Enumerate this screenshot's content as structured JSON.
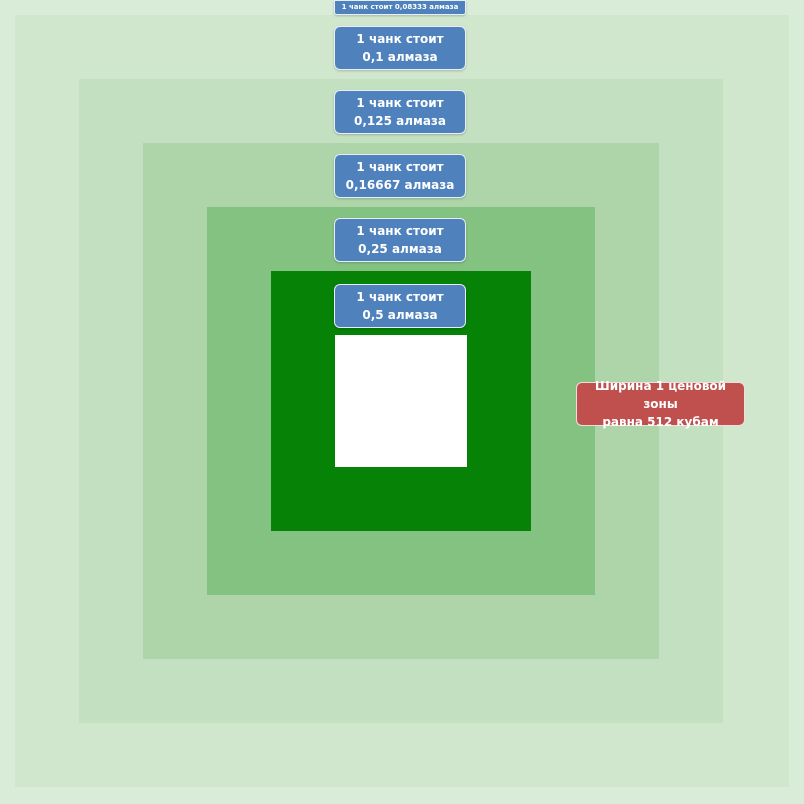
{
  "colors": {
    "zone6": "#d0e6cd",
    "zone5": "#c3e0c0",
    "zone4": "#add5a9",
    "zone3": "#84c281",
    "zone2": "#068206",
    "center": "#ffffff",
    "label_bg": "#4f81bd",
    "note_bg": "#c0504d"
  },
  "labels": [
    {
      "line1": "1 чанк  стоит 0,08333 алмаза",
      "line2": ""
    },
    {
      "line1": "1 чанк стоит",
      "line2": "0,1 алмаза"
    },
    {
      "line1": "1 чанк стоит",
      "line2": "0,125  алмаза"
    },
    {
      "line1": "1 чанк стоит",
      "line2": "0,16667  алмаза"
    },
    {
      "line1": "1 чанк стоит",
      "line2": "0,25 алмаза"
    },
    {
      "line1": "1 чанк стоит",
      "line2": "0,5 алмаза"
    }
  ],
  "note": {
    "line1": "Ширина 1 ценовой зоны",
    "line2": "равна 512 кубам"
  }
}
